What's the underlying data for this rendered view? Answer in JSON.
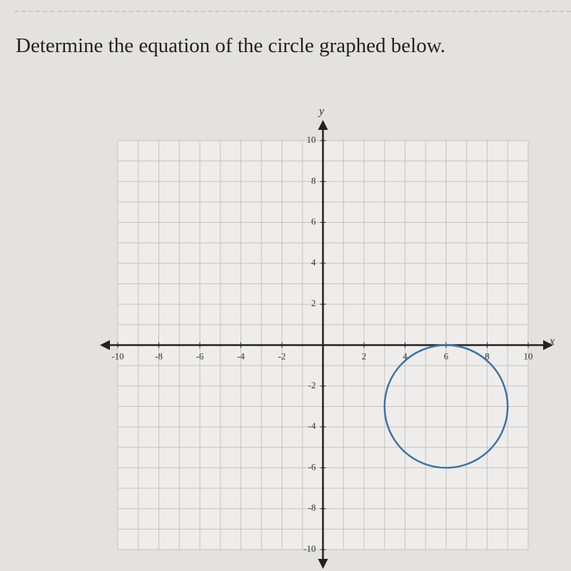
{
  "question": "Determine the equation of the circle graphed below.",
  "chart_data": {
    "type": "circle",
    "x_label": "x",
    "y_label": "y",
    "xlim": [
      -10,
      10
    ],
    "ylim": [
      -10,
      10
    ],
    "xticks": [
      -10,
      -8,
      -6,
      -4,
      -2,
      2,
      4,
      6,
      8,
      10
    ],
    "yticks": [
      -10,
      -8,
      -6,
      -4,
      -2,
      2,
      4,
      6,
      8,
      10
    ],
    "grid": true,
    "grid_step": 1,
    "center": [
      6,
      -3
    ],
    "radius": 3,
    "color": "#3f72a3"
  }
}
